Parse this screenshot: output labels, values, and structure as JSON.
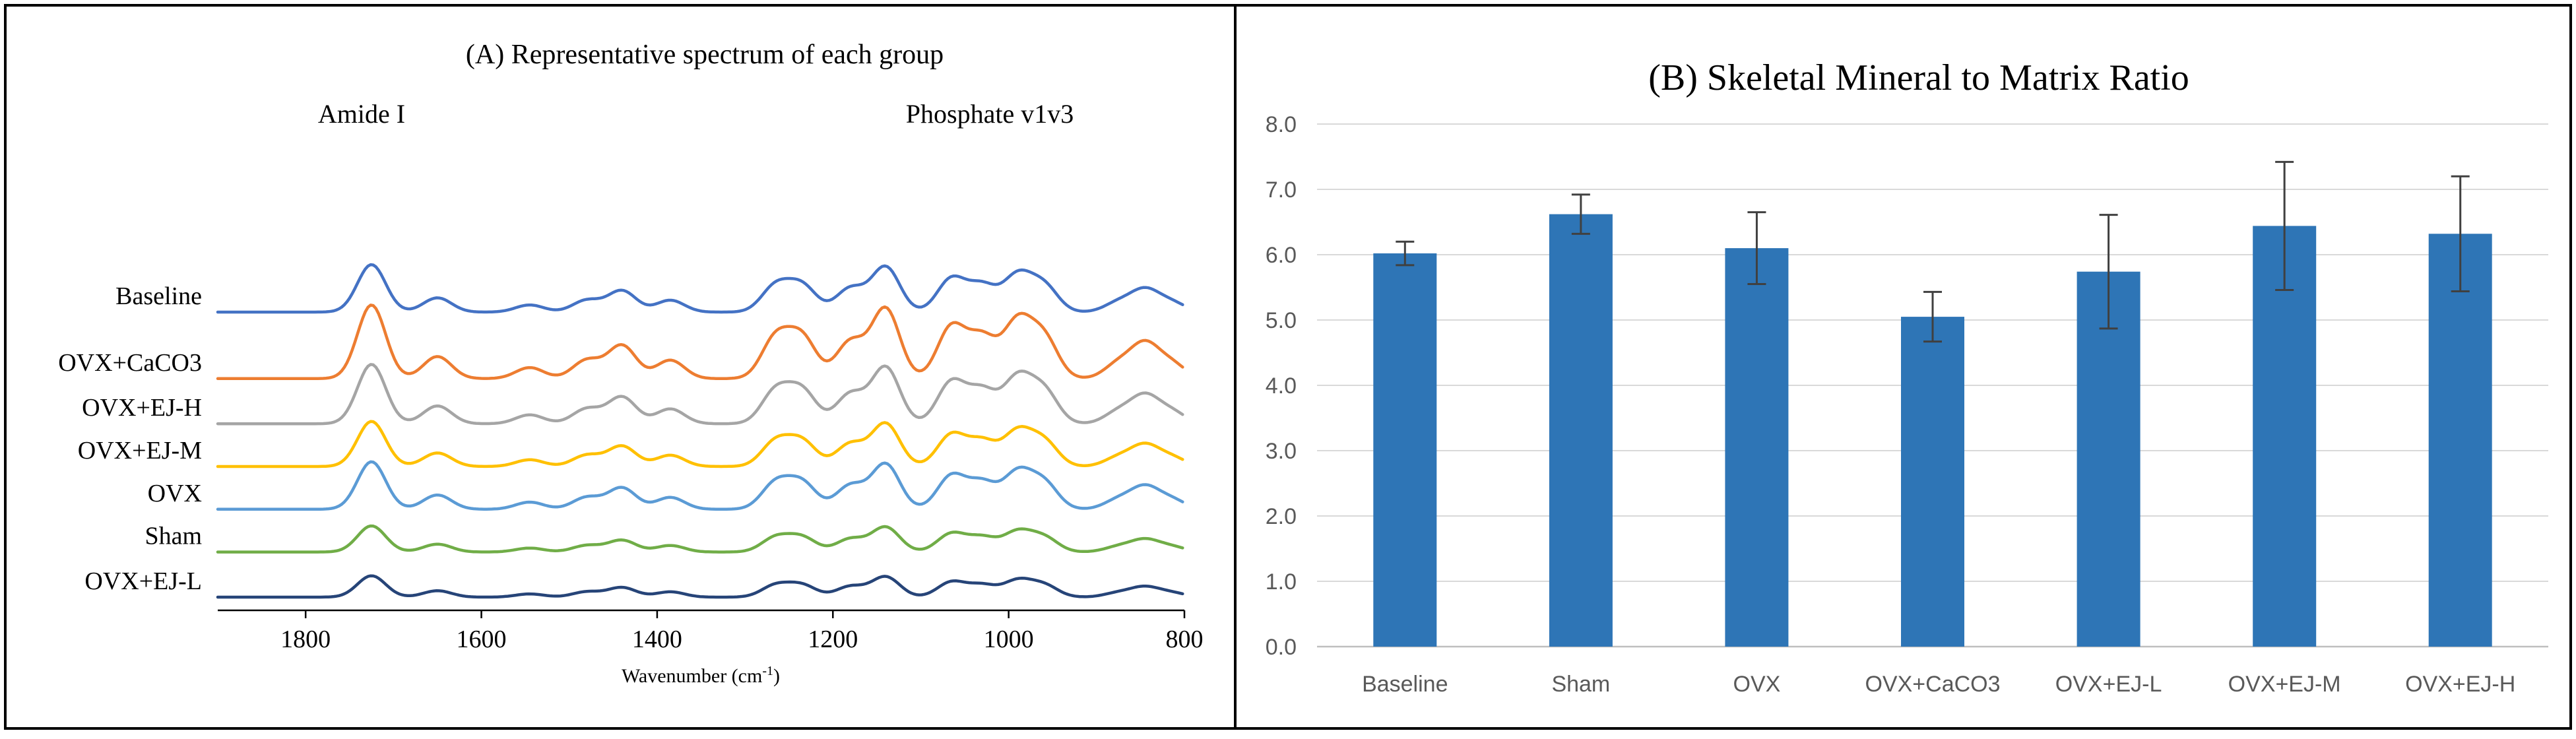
{
  "panel_a": {
    "title": "(A) Representative spectrum of each group",
    "annotations": [
      "Amide I",
      "Phosphate v1v3"
    ],
    "xlabel_main": "Wavenumber (cm",
    "xlabel_sup": "-1",
    "xlabel_end": ")"
  },
  "panel_b": {
    "title": "(B) Skeletal Mineral to Matrix Ratio"
  },
  "chart_data": [
    {
      "type": "line",
      "title": "(A) Representative spectrum of each group",
      "xlabel": "Wavenumber (cm-1)",
      "ylabel": "",
      "xlim": [
        1900,
        800
      ],
      "x_ticks": [
        1800,
        1600,
        1400,
        1200,
        1000,
        800
      ],
      "x_tick_labels": [
        "1800",
        "1600",
        "1400",
        "1200",
        "1000",
        "800"
      ],
      "annotations": [
        {
          "text": "Amide I",
          "x": 1730
        },
        {
          "text": "Phosphate v1v3",
          "x": 1120
        }
      ],
      "series": [
        {
          "name": "Baseline",
          "color": "#4472c4",
          "offset": 6.0,
          "scale": 1.0
        },
        {
          "name": "OVX+CaCO3",
          "color": "#ed7d31",
          "offset": 4.6,
          "scale": 1.55
        },
        {
          "name": "OVX+EJ-H",
          "color": "#a5a5a5",
          "offset": 3.65,
          "scale": 1.25
        },
        {
          "name": "OVX+EJ-M",
          "color": "#ffc000",
          "offset": 2.75,
          "scale": 0.95
        },
        {
          "name": "OVX",
          "color": "#5b9bd5",
          "offset": 1.85,
          "scale": 1.0
        },
        {
          "name": "Sham",
          "color": "#70ad47",
          "offset": 0.95,
          "scale": 0.55
        },
        {
          "name": "OVX+EJ-L",
          "color": "#264478",
          "offset": 0.0,
          "scale": 0.45
        }
      ],
      "peaks": [
        {
          "center": 1725,
          "height": 1.0
        },
        {
          "center": 1650,
          "height": 0.3
        },
        {
          "center": 1545,
          "height": 0.15
        },
        {
          "center": 1480,
          "height": 0.25
        },
        {
          "center": 1440,
          "height": 0.45
        },
        {
          "center": 1385,
          "height": 0.25
        },
        {
          "center": 1265,
          "height": 0.55
        },
        {
          "center": 1235,
          "height": 0.55
        },
        {
          "center": 1180,
          "height": 0.5
        },
        {
          "center": 1140,
          "height": 0.95
        },
        {
          "center": 1065,
          "height": 0.7
        },
        {
          "center": 1030,
          "height": 0.55
        },
        {
          "center": 990,
          "height": 0.75
        },
        {
          "center": 960,
          "height": 0.55
        },
        {
          "center": 875,
          "height": 0.2
        },
        {
          "center": 845,
          "height": 0.45
        },
        {
          "center": 815,
          "height": 0.2
        }
      ]
    },
    {
      "type": "bar",
      "title": "(B) Skeletal Mineral to Matrix Ratio",
      "xlabel": "",
      "ylabel": "",
      "categories": [
        "Baseline",
        "Sham",
        "OVX",
        "OVX+CaCO3",
        "OVX+EJ-L",
        "OVX+EJ-M",
        "OVX+EJ-H"
      ],
      "values": [
        6.02,
        6.62,
        6.1,
        5.05,
        5.74,
        6.44,
        6.32
      ],
      "error": [
        0.18,
        0.3,
        0.55,
        0.38,
        0.87,
        0.98,
        0.88
      ],
      "color": "#2e75b6",
      "ylim": [
        0,
        8
      ],
      "y_ticks": [
        0,
        1,
        2,
        3,
        4,
        5,
        6,
        7,
        8
      ],
      "y_tick_labels": [
        "0.0",
        "1.0",
        "2.0",
        "3.0",
        "4.0",
        "5.0",
        "6.0",
        "7.0",
        "8.0"
      ],
      "grid": true
    }
  ]
}
